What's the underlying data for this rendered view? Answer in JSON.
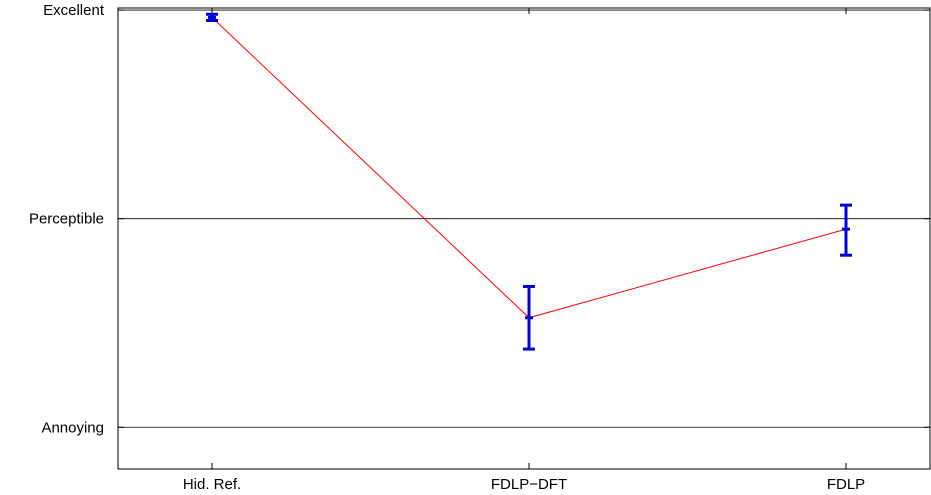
{
  "chart_data": {
    "type": "line",
    "categories": [
      "Hid. Ref.",
      "FDLP−DFT",
      "FDLP"
    ],
    "y_ticks": [
      {
        "value": 1,
        "label": "Annoying"
      },
      {
        "value": 3,
        "label": "Perceptible"
      },
      {
        "value": 5,
        "label": "Excellent"
      }
    ],
    "ylim": [
      0.6,
      5.02
    ],
    "grid": "horizontal",
    "series": [
      {
        "values": [
          4.93,
          2.05,
          2.9
        ],
        "ci_low": [
          4.9,
          1.75,
          2.65
        ],
        "ci_high": [
          4.96,
          2.35,
          3.13
        ],
        "line_color": "#ff0000",
        "errorbar_color": "#0000dd"
      }
    ]
  }
}
